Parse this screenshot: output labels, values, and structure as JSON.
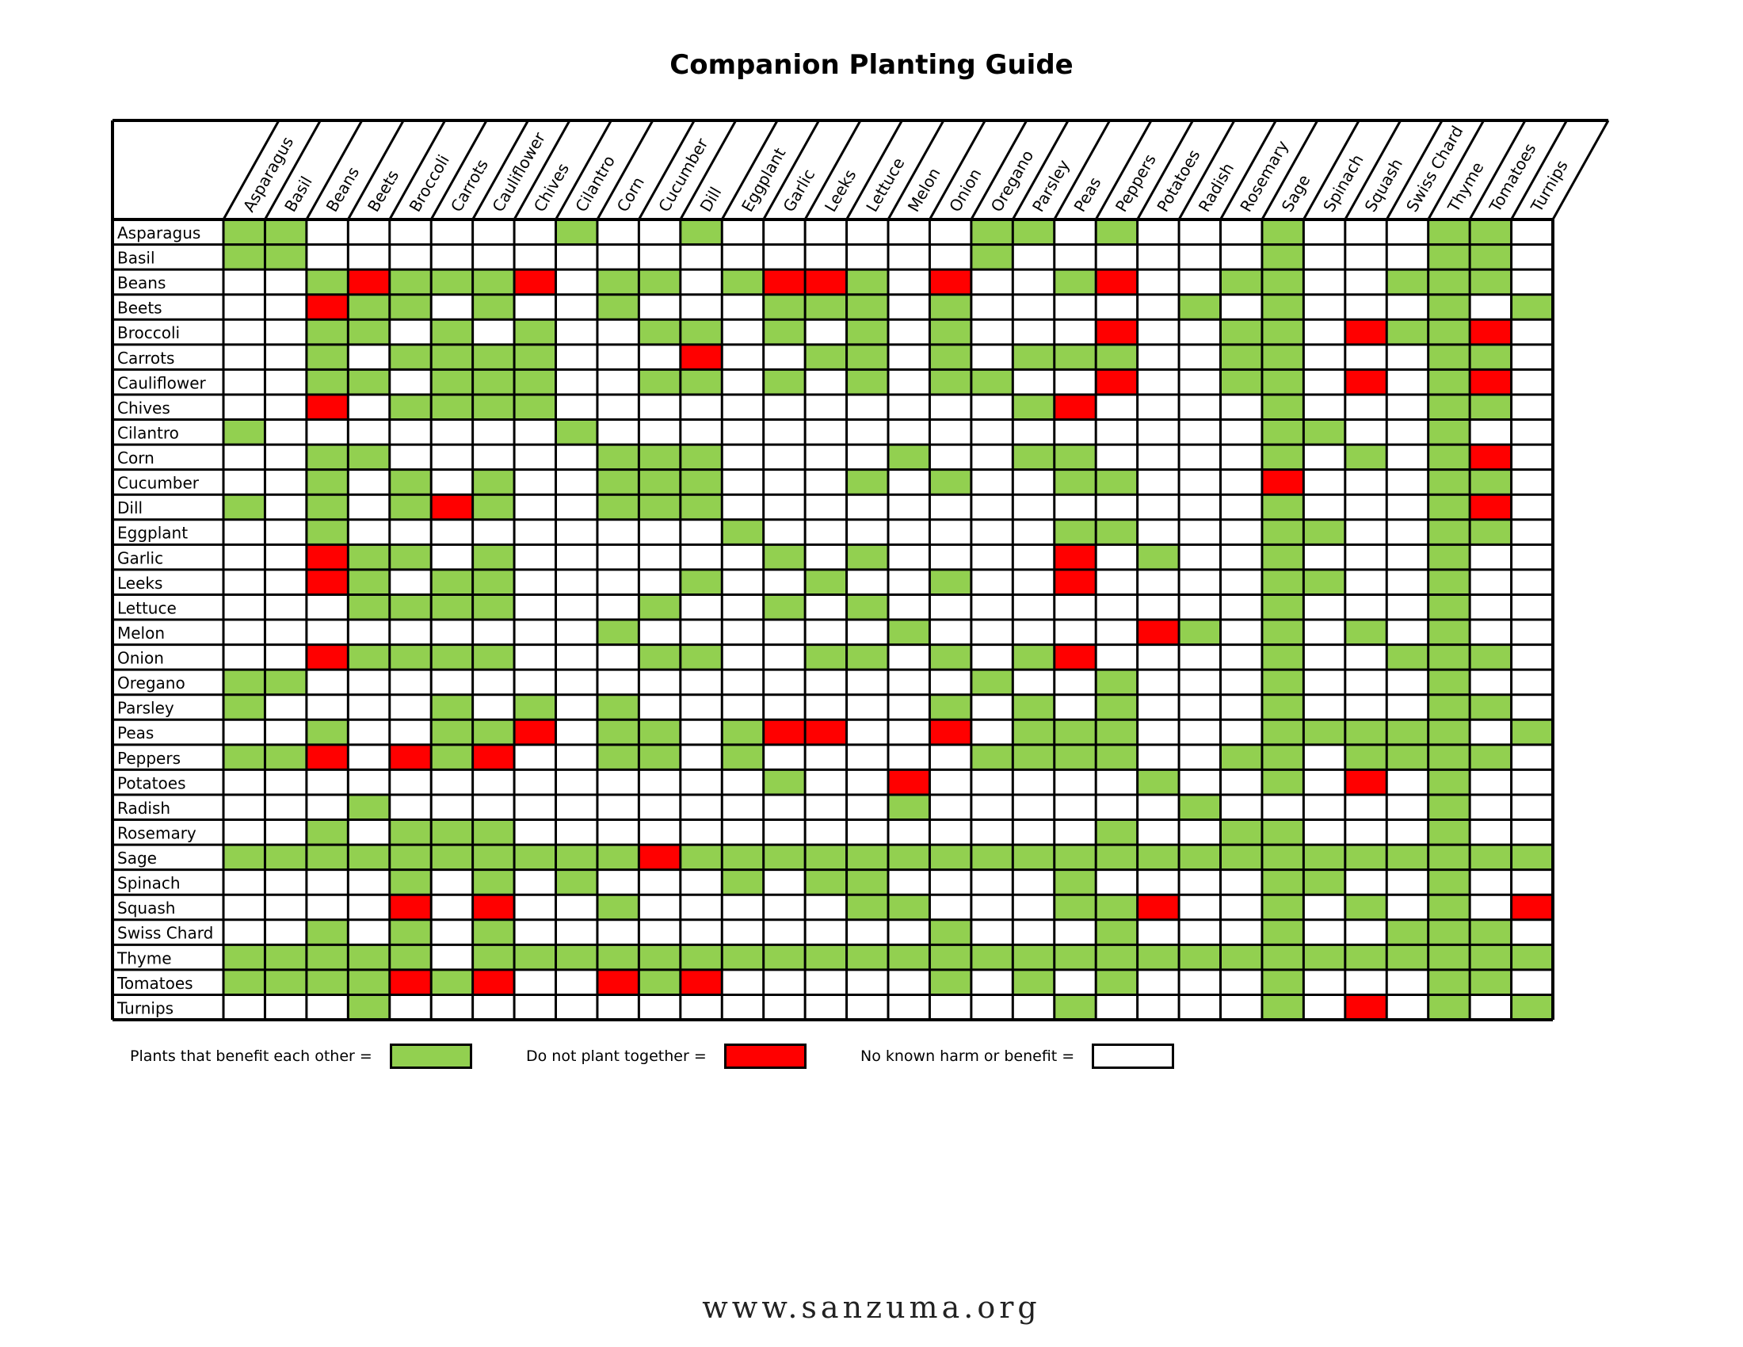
{
  "chart_data": {
    "type": "heatmap",
    "title": "Companion Planting Guide",
    "plants": [
      "Asparagus",
      "Basil",
      "Beans",
      "Beets",
      "Broccoli",
      "Carrots",
      "Cauliflower",
      "Chives",
      "Cilantro",
      "Corn",
      "Cucumber",
      "Dill",
      "Eggplant",
      "Garlic",
      "Leeks",
      "Lettuce",
      "Melon",
      "Onion",
      "Oregano",
      "Parsley",
      "Peas",
      "Peppers",
      "Potatoes",
      "Radish",
      "Rosemary",
      "Sage",
      "Spinach",
      "Squash",
      "Swiss Chard",
      "Thyme",
      "Tomatoes",
      "Turnips"
    ],
    "value_key": {
      "G": "benefit",
      "R": "harm",
      "W": "neutral"
    },
    "matrix": [
      "GGWWWWWWGWWGWWWWWWGGWGWWWGWWWGGW",
      "GGWWWWWWWWWWWWWWWWGWWWWWWGWWWGGW",
      "WWGRGGGRWGGWGRRGWRWWGRWWGGWWGGGW",
      "WWRGGWGWWGWWWGGGWGWWWWWGWGWWWGWG",
      "WWGGWGWGWWGGWGWGWGWWWRWWGGWRGGRW",
      "WWGWGGGGWWWRWWGGWGWGGGWWGGWWWGGW",
      "WWGGWGGGWWGGWGWGWGGWWRWWGGWRWGRW",
      "WWRWGGGGWWWWWWWWWWWGRWWWWGWWWGGW",
      "GWWWWWWWGWWWWWWWWWWWWWWWWGGWWGWW",
      "WWGGWWWWWGGGWWWWGWWGGWWWWGWGWGRW",
      "WWGWGWGWWGGGWWWGWGWWGGWWWRWWWGGW",
      "GWGWGRGWWGGGWWWWWWWWWWWWWGWWWGRW",
      "WWGWWWWWWWWWGWWWWWWWGGWWWGGWWGGW",
      "WWRGGWGWWWWWWGWGWWWWRWGWWGWWWGWW",
      "WWRGWGGWWWWGWWGWWGWWRWWWWGGWWGWW",
      "WWWGGGGWWWGWWGWGWWWWWWWWWGWWWGWW",
      "WWWWWWWWWGWWWWWWGWWWWWRGWGWGWGWW",
      "WWRGGGGWWWGGWWGGWGWGRWWWWGWWGGGW",
      "GGWWWWWWWWWWWWWWWWGWWGWWWGWWWGWW",
      "GWWWWGWGWGWWWWWWWGWGWGWWWGWWWGGW",
      "WWGWWGGRWGGWGRRWWRWGGGWWWGGGGGWG",
      "GGRWRGRWWGGWGWWWWWGGGGWWGGWGGGGW",
      "WWWWWWWWWWWWWGWWRWWWWWGWWGWRWGWW",
      "WWWGWWWWWWWWWWWWGWWWWWWGWWWWWGWW",
      "WWGWGGGWWWWWWWWWWWWWWGWWGGWWWGWW",
      "GGGGGGGGGGRGGGGGGGGGGGGGGGGGGGGG",
      "WWWWGWGWGWWWGWGGWWWWGWWWWGGWWGWW",
      "WWWWRWRWWGWWWWWGGWWWGGRWWGWGWGWR",
      "WWGWGWGWWWWWWWWWWGWWWGWWWGWWGGGW",
      "GGGGGWGGGGGGGGGGGGGGGGGGGGGGGGGG",
      "GGGGRGRWWRGRWWWWWGWGWGWWWGWWWGGW",
      "WWWGWWWWWWWWWWWWWWWWGWWWWGWRWGWG"
    ],
    "legend": [
      {
        "label": "Plants that benefit each other =",
        "color": "#92d050"
      },
      {
        "label": "Do not plant together =",
        "color": "#ff0000"
      },
      {
        "label": "No known harm or benefit =",
        "color": "#ffffff"
      }
    ],
    "colors": {
      "G": "#92d050",
      "R": "#ff0000",
      "W": "#ffffff"
    }
  },
  "footer": "www.sanzuma.org"
}
